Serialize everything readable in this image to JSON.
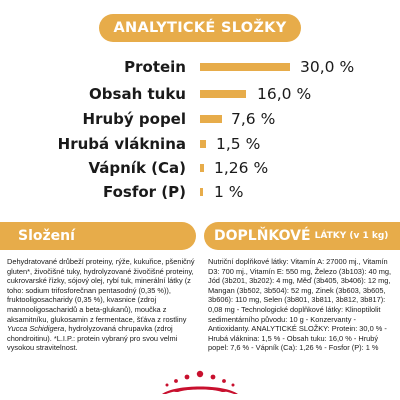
{
  "analytic": {
    "title": "ANALYTICKÉ SLOŽKY",
    "rows": [
      {
        "label": "Protein",
        "value": "30,0 %",
        "percent": 30.0
      },
      {
        "label": "Obsah tuku",
        "value": "16,0 %",
        "percent": 16.0
      },
      {
        "label": "Hrubý popel",
        "value": "7,6 %",
        "percent": 7.6
      },
      {
        "label": "Hrubá vláknina",
        "value": "1,5 %",
        "percent": 1.5
      },
      {
        "label": "Vápník (Ca)",
        "value": "1,26 %",
        "percent": 1.26
      },
      {
        "label": "Fosfor (P)",
        "value": "1 %",
        "percent": 1.0
      }
    ]
  },
  "composition": {
    "title": "Složení",
    "text": "Dehydratované drůbeží proteiny, rýže, kukuřice, pšeničný gluten*, živočišné tuky, hydrolyzované živočišné proteiny, cukrovarské řízky, sójový olej, rybí tuk, minerální látky (z toho: sodium trifosforečnan pentasodný (0,35 %)), fruktooligosacharidy (0,35 %), kvasnice (zdroj mannooligosacharidů a beta-glukanů), moučka z aksamitníku, glukosamin z fermentace, šťáva z rostliny ",
    "text_italic": "Yucca Schidigera",
    "text_end": ", hydrolyzovaná chrupavka (zdroj chondroitinu). *L.I.P.: protein vybraný pro svou velmi vysokou stravitelnost."
  },
  "additives": {
    "title": "DOPLŇKOVÉ",
    "subtitle": "LÁTKY (v 1 kg)",
    "text": "Nutriční doplňkové látky: Vitamín A: 27000 mj., Vitamín D3: 700 mj., Vitamín E: 550 mg, Železo (3b103): 40 mg, Jód (3b201, 3b202): 4 mg, Měď (3b405, 3b406): 12 mg, Mangan (3b502, 3b504): 52 mg, Zinek (3b603, 3b605, 3b606): 110 mg, Selen (3b801, 3b811, 3b812, 3b817): 0,08 mg - Technologické doplňkové látky: Klinoptilolit sedimentárního původu: 10 g - Konzervanty - Antioxidanty. ANALYTICKÉ SLOŽKY: Protein: 30,0 % - Hrubá vláknina: 1,5 % - Obsah tuku: 16,0 % - Hrubý popel: 7,6 % - Vápník (Ca): 1,26 % - Fosfor (P): 1 %"
  },
  "colors": {
    "accent": "#e7ac4a",
    "logo": "#c8102e"
  },
  "logo": {
    "icon": "royal-canin-crown-icon"
  }
}
